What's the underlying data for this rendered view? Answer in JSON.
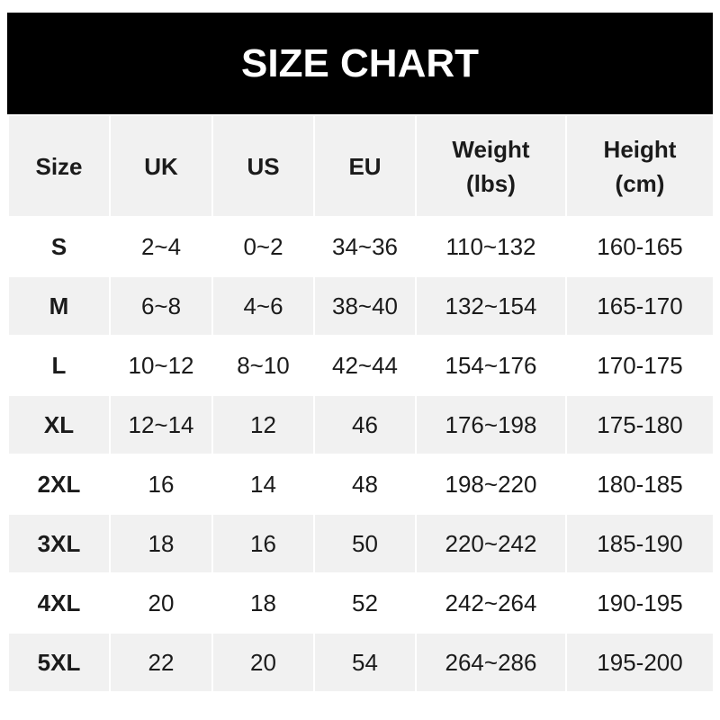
{
  "title": "SIZE CHART",
  "headers": [
    "Size",
    "UK",
    "US",
    "EU",
    "Weight\n(lbs)",
    "Height\n(cm)"
  ],
  "header_lines": [
    [
      "Size"
    ],
    [
      "UK"
    ],
    [
      "US"
    ],
    [
      "EU"
    ],
    [
      "Weight",
      "(lbs)"
    ],
    [
      "Height",
      "(cm)"
    ]
  ],
  "rows": [
    [
      "S",
      "2~4",
      "0~2",
      "34~36",
      "110~132",
      "160-165"
    ],
    [
      "M",
      "6~8",
      "4~6",
      "38~40",
      "132~154",
      "165-170"
    ],
    [
      "L",
      "10~12",
      "8~10",
      "42~44",
      "154~176",
      "170-175"
    ],
    [
      "XL",
      "12~14",
      "12",
      "46",
      "176~198",
      "175-180"
    ],
    [
      "2XL",
      "16",
      "14",
      "48",
      "198~220",
      "180-185"
    ],
    [
      "3XL",
      "18",
      "16",
      "50",
      "220~242",
      "185-190"
    ],
    [
      "4XL",
      "20",
      "18",
      "52",
      "242~264",
      "190-195"
    ],
    [
      "5XL",
      "22",
      "20",
      "54",
      "264~286",
      "195-200"
    ]
  ],
  "colors": {
    "header_band": "#000000",
    "row_alt": "#f1f1f1",
    "text": "#1b1b1b"
  }
}
